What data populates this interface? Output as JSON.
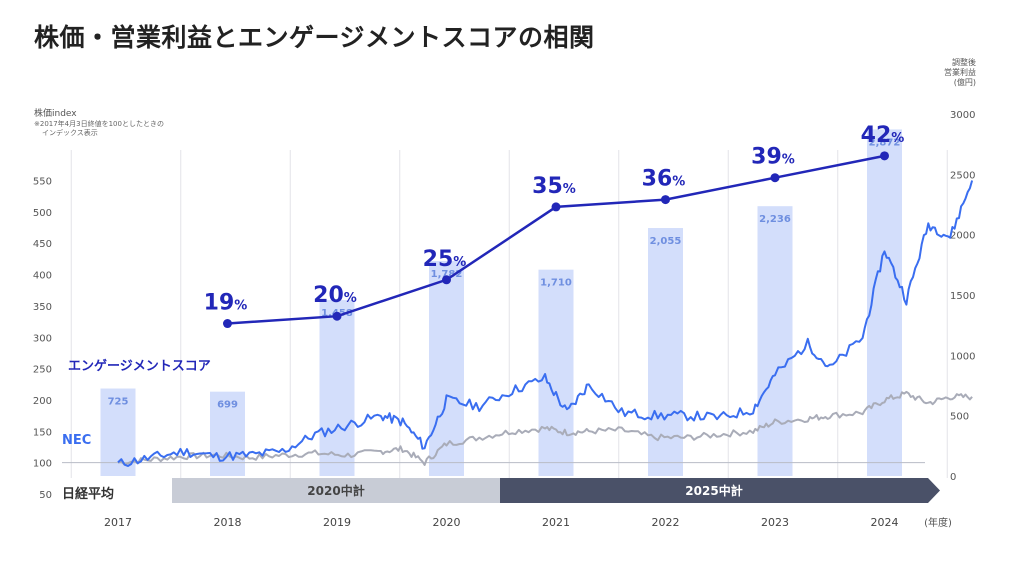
{
  "title": "株価・営業利益とエンゲージメントスコアの相関",
  "left_axis": {
    "title": "株価index",
    "note_line1": "※2017年4月3日終値を100としたときの",
    "note_line2": "インデックス表示"
  },
  "right_axis": {
    "title_line1": "調整後",
    "title_line2": "営業利益",
    "title_line3": "(億円)"
  },
  "year_unit": "(年度)",
  "series_labels": {
    "engagement": "エンゲージメントスコア",
    "nec": "NEC",
    "nikkei": "日経平均"
  },
  "plans": [
    {
      "label": "2020中計"
    },
    {
      "label": "2025中計"
    }
  ],
  "colors": {
    "bar": "#d3defb",
    "bar_label": "#6f8fe0",
    "engagement": "#2227b8",
    "nec": "#3a6ef0",
    "nikkei": "#a9acb8",
    "plan2020": "#c8ccd6",
    "plan2025": "#4a5168"
  },
  "chart_data": {
    "type": "bar",
    "categories": [
      "2017",
      "2018",
      "2019",
      "2020",
      "2021",
      "2022",
      "2023",
      "2024"
    ],
    "left_ylim": [
      50,
      570
    ],
    "left_ticks": [
      50,
      100,
      150,
      200,
      250,
      300,
      350,
      400,
      450,
      500,
      550
    ],
    "right_ylim": [
      0,
      3000
    ],
    "right_ticks": [
      0,
      500,
      1000,
      1500,
      2000,
      2500,
      3000
    ],
    "operating_profit": {
      "values": [
        725,
        699,
        1458,
        1782,
        1710,
        2055,
        2236,
        2872
      ],
      "labels": [
        "725",
        "699",
        "1,458",
        "1,782",
        "1,710",
        "2,055",
        "2,236",
        "2,872"
      ]
    },
    "engagement_score": {
      "categories": [
        "2018",
        "2019",
        "2020",
        "2021",
        "2022",
        "2023",
        "2024"
      ],
      "values": [
        19,
        20,
        25,
        35,
        36,
        39,
        42
      ],
      "labels": [
        "19",
        "20",
        "25",
        "35",
        "36",
        "39",
        "42"
      ],
      "unit": "%"
    },
    "nec_index": {
      "x": [
        2017.0,
        2017.3,
        2017.6,
        2017.9,
        2018.2,
        2018.5,
        2018.8,
        2019.1,
        2019.4,
        2019.6,
        2019.8,
        2020.0,
        2020.3,
        2020.6,
        2020.9,
        2021.1,
        2021.3,
        2021.6,
        2021.9,
        2022.2,
        2022.5,
        2022.8,
        2023.0,
        2023.3,
        2023.5,
        2023.8,
        2024.0,
        2024.2,
        2024.4,
        2024.6,
        2024.8
      ],
      "y": [
        98,
        108,
        118,
        110,
        112,
        118,
        145,
        160,
        175,
        165,
        125,
        200,
        190,
        215,
        235,
        180,
        225,
        180,
        175,
        175,
        172,
        185,
        240,
        290,
        250,
        300,
        440,
        360,
        480,
        460,
        550
      ]
    },
    "nikkei_index": {
      "x": [
        2017.0,
        2017.3,
        2017.6,
        2017.9,
        2018.2,
        2018.5,
        2018.8,
        2019.1,
        2019.4,
        2019.6,
        2019.8,
        2020.0,
        2020.3,
        2020.6,
        2020.9,
        2021.1,
        2021.3,
        2021.6,
        2021.9,
        2022.2,
        2022.5,
        2022.8,
        2023.0,
        2023.3,
        2023.5,
        2023.8,
        2024.0,
        2024.2,
        2024.4,
        2024.6,
        2024.8
      ],
      "y": [
        100,
        105,
        110,
        112,
        108,
        112,
        115,
        112,
        118,
        122,
        100,
        130,
        140,
        150,
        155,
        148,
        150,
        152,
        140,
        140,
        145,
        150,
        165,
        170,
        175,
        180,
        200,
        210,
        195,
        205,
        205
      ]
    }
  }
}
